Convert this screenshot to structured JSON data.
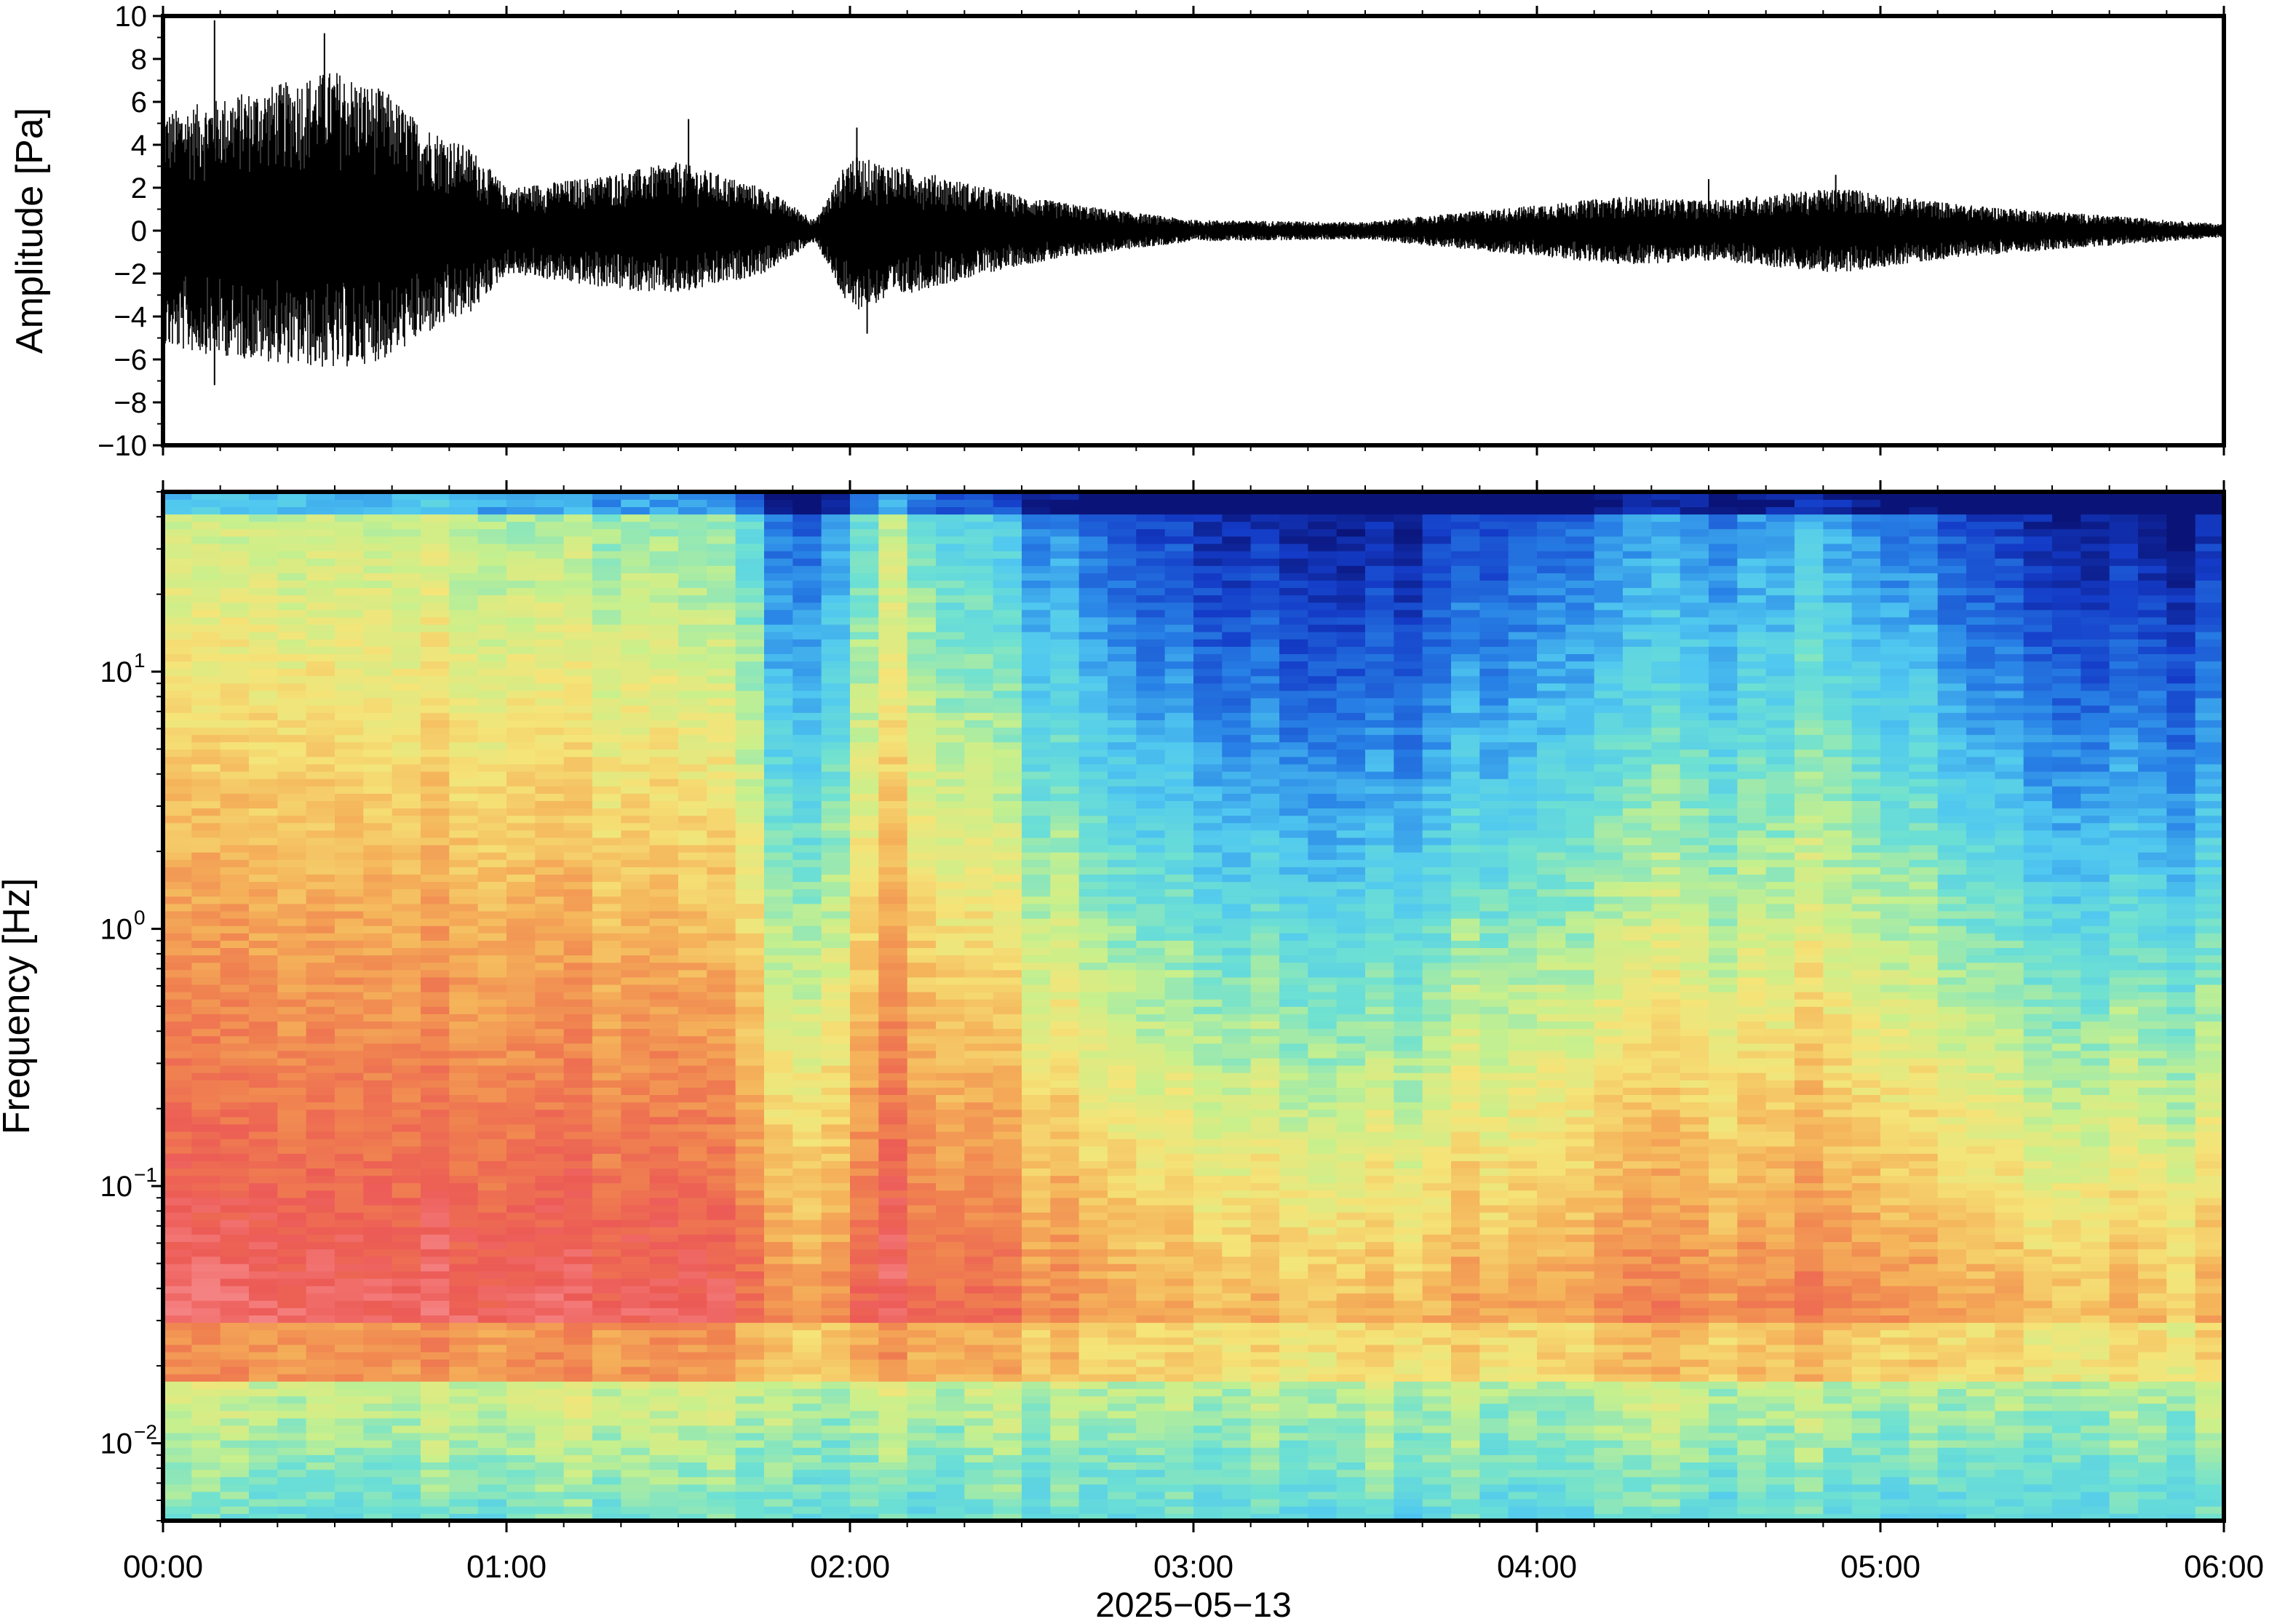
{
  "chart_data": [
    {
      "type": "line",
      "panel": "waveform",
      "ylabel": "Amplitude [Pa]",
      "ylim": [
        -10,
        10
      ],
      "yticks": [
        "10",
        "8",
        "6",
        "4",
        "2",
        "0",
        "−2",
        "−4",
        "−6",
        "−8",
        "−10"
      ],
      "ytick_values": [
        10,
        8,
        6,
        4,
        2,
        0,
        -2,
        -4,
        -6,
        -8,
        -10
      ],
      "xlim": [
        "00:00",
        "06:00"
      ],
      "envelope_series": {
        "name": "",
        "time_h": [
          0.0,
          0.25,
          0.5,
          0.65,
          0.75,
          0.9,
          1.0,
          1.25,
          1.5,
          1.75,
          1.9,
          2.0,
          2.2,
          2.5,
          2.75,
          3.0,
          3.5,
          3.75,
          4.0,
          4.25,
          4.5,
          4.75,
          4.9,
          5.0,
          5.25,
          5.5,
          5.75,
          6.0
        ],
        "upper": [
          5.5,
          6.5,
          7.5,
          6.5,
          5.0,
          3.8,
          2.0,
          2.5,
          3.2,
          2.0,
          0.5,
          3.5,
          2.8,
          1.6,
          1.0,
          0.5,
          0.4,
          0.8,
          1.2,
          1.6,
          1.4,
          1.8,
          2.0,
          1.7,
          1.2,
          0.9,
          0.6,
          0.3
        ],
        "lower": [
          -5.5,
          -6.0,
          -6.5,
          -6.0,
          -5.0,
          -3.8,
          -2.0,
          -2.6,
          -3.0,
          -2.0,
          -0.5,
          -3.8,
          -2.8,
          -1.6,
          -1.0,
          -0.5,
          -0.4,
          -0.8,
          -1.2,
          -1.6,
          -1.4,
          -1.8,
          -2.0,
          -1.7,
          -1.2,
          -0.9,
          -0.6,
          -0.3
        ],
        "peaks": [
          {
            "time_h": 0.15,
            "value": 9.8
          },
          {
            "time_h": 0.15,
            "value": -7.2
          },
          {
            "time_h": 0.47,
            "value": 9.2
          },
          {
            "time_h": 0.55,
            "value": -5.8
          },
          {
            "time_h": 1.53,
            "value": 5.2
          },
          {
            "time_h": 2.02,
            "value": 4.8
          },
          {
            "time_h": 2.05,
            "value": -4.8
          },
          {
            "time_h": 4.5,
            "value": 2.4
          },
          {
            "time_h": 4.87,
            "value": 2.6
          }
        ]
      }
    },
    {
      "type": "heatmap",
      "panel": "spectrogram",
      "ylabel": "Frequency [Hz]",
      "yscale": "log",
      "ylim": [
        0.005,
        50
      ],
      "yticks": [
        {
          "base": "10",
          "exp": "1",
          "value": 10
        },
        {
          "base": "10",
          "exp": "0",
          "value": 1
        },
        {
          "base": "10",
          "exp": "−1",
          "value": 0.1
        },
        {
          "base": "10",
          "exp": "−2",
          "value": 0.01
        }
      ],
      "xlim": [
        "00:00",
        "06:00"
      ],
      "xticks": [
        "00:00",
        "01:00",
        "02:00",
        "03:00",
        "04:00",
        "05:00",
        "06:00"
      ],
      "xtick_hours": [
        0,
        1,
        2,
        3,
        4,
        5,
        6
      ],
      "xlabel": "2025−05−13",
      "colormap": "jet",
      "colors": {
        "deep_blue": "#0a1a8c",
        "blue": "#1f5fd8",
        "cyan": "#4fc8ee",
        "aqua": "#6fe0d0",
        "green_yellow": "#d8f08a",
        "yellow": "#f5e07a",
        "orange": "#f2a050",
        "red": "#ef5a55",
        "pink": "#f58080"
      },
      "activity_by_hour": {
        "time_h": [
          0.0,
          0.3,
          0.6,
          0.9,
          1.2,
          1.5,
          1.7,
          1.8,
          1.9,
          2.1,
          2.3,
          2.6,
          3.0,
          3.3,
          3.5,
          3.7,
          4.0,
          4.3,
          4.6,
          4.85,
          5.1,
          5.3,
          5.6,
          6.0
        ],
        "level": [
          0.95,
          1.0,
          1.0,
          0.95,
          0.9,
          0.88,
          0.82,
          0.45,
          0.5,
          0.95,
          0.8,
          0.55,
          0.35,
          0.3,
          0.25,
          0.35,
          0.5,
          0.55,
          0.58,
          0.65,
          0.55,
          0.4,
          0.3,
          0.3
        ]
      }
    }
  ]
}
